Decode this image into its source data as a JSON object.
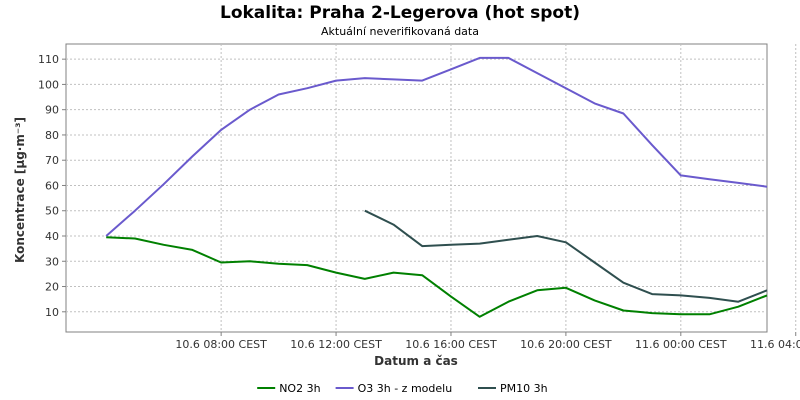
{
  "chart_data": {
    "type": "line",
    "title": "Lokalita: Praha 2-Legerova (hot spot)",
    "subtitle": "Aktuální neverifikovaná data",
    "xlabel": "Datum a čas",
    "ylabel": "Koncentrace [µg·m⁻³]",
    "ylim": [
      2,
      116
    ],
    "y_ticks": [
      10,
      20,
      30,
      40,
      50,
      60,
      70,
      80,
      90,
      100,
      110
    ],
    "x_hours_range": [
      2.6,
      27.0
    ],
    "x_ticks": [
      {
        "hour": 8,
        "label": "10.6 08:00 CEST"
      },
      {
        "hour": 12,
        "label": "10.6 12:00 CEST"
      },
      {
        "hour": 16,
        "label": "10.6 16:00 CEST"
      },
      {
        "hour": 20,
        "label": "10.6 20:00 CEST"
      },
      {
        "hour": 24,
        "label": "11.6 00:00 CEST"
      },
      {
        "hour": 28,
        "label": "11.6 04:00 CEST"
      }
    ],
    "grid": true,
    "legend_position": "bottom",
    "series": [
      {
        "name": "NO2 3h",
        "color": "#008000",
        "x": [
          4,
          5,
          6,
          7,
          8,
          9,
          10,
          11,
          12,
          13,
          14,
          15,
          16,
          17,
          18,
          19,
          20,
          21,
          22,
          23,
          24,
          25,
          26,
          27
        ],
        "values": [
          39.5,
          39,
          36.5,
          34.5,
          29.5,
          30,
          29,
          28.5,
          25.5,
          23,
          25.5,
          24.5,
          16,
          8,
          14,
          18.5,
          19.5,
          14.5,
          10.5,
          9.5,
          9,
          9,
          12,
          16.5
        ]
      },
      {
        "name": "O3 3h - z modelu",
        "color": "#6a5acd",
        "x": [
          4,
          5,
          6,
          7,
          8,
          9,
          10,
          11,
          12,
          13,
          14,
          15,
          16,
          17,
          18,
          19,
          20,
          21,
          22,
          23,
          24,
          25,
          26,
          27
        ],
        "values": [
          40,
          50,
          60.5,
          71.5,
          82,
          90,
          96,
          98.5,
          101.5,
          102.5,
          102,
          101.5,
          106,
          110.5,
          110.5,
          104.5,
          98.5,
          92.5,
          88.5,
          76,
          64,
          62.5,
          61,
          59.5
        ]
      },
      {
        "name": "PM10 3h",
        "color": "#2f4f4f",
        "x": [
          13,
          14,
          15,
          16,
          17,
          18,
          19,
          20,
          21,
          22,
          23,
          24,
          25,
          26,
          27
        ],
        "values": [
          50,
          44.5,
          36,
          36.5,
          37,
          38.5,
          40,
          37.5,
          29.5,
          21.5,
          17,
          16.5,
          15.5,
          14,
          18.5
        ]
      }
    ]
  }
}
